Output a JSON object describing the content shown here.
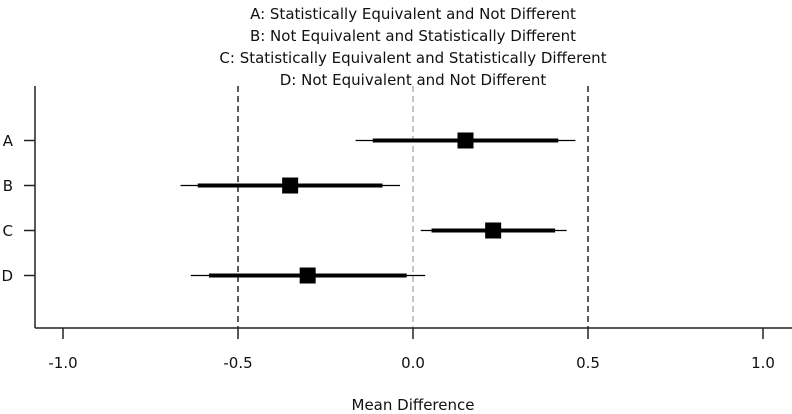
{
  "chart_data": {
    "type": "forest",
    "title_lines": [
      "A: Statistically Equivalent and Not Different",
      "B: Not Equivalent and Statistically Different",
      "C: Statistically Equivalent and Statistically Different",
      "D: Not Equivalent and Not Different"
    ],
    "xlabel": "Mean Difference",
    "ylabel": "",
    "xlim": [
      -1.08,
      1.08
    ],
    "xticks": [
      -1.0,
      -0.5,
      0.0,
      0.5,
      1.0
    ],
    "xtick_labels": [
      "-1.0",
      "-0.5",
      "0.0",
      "0.5",
      "1.0"
    ],
    "reference_lines": {
      "equivalence_bounds": [
        -0.5,
        0.5
      ],
      "zero": 0.0
    },
    "categories": [
      "A",
      "B",
      "C",
      "D"
    ],
    "series": [
      {
        "name": "A",
        "estimate": 0.15,
        "inner_ci": [
          -0.115,
          0.415
        ],
        "outer_ci": [
          -0.164,
          0.464
        ]
      },
      {
        "name": "B",
        "estimate": -0.351,
        "inner_ci": [
          -0.615,
          -0.087
        ],
        "outer_ci": [
          -0.664,
          -0.037
        ]
      },
      {
        "name": "C",
        "estimate": 0.229,
        "inner_ci": [
          0.053,
          0.406
        ],
        "outer_ci": [
          0.022,
          0.439
        ]
      },
      {
        "name": "D",
        "estimate": -0.301,
        "inner_ci": [
          -0.583,
          -0.018
        ],
        "outer_ci": [
          -0.635,
          0.035
        ]
      }
    ],
    "grid": false,
    "colors": {
      "marks": "#000000",
      "bounds": "#333333",
      "zero": "#aaaaaa"
    }
  }
}
